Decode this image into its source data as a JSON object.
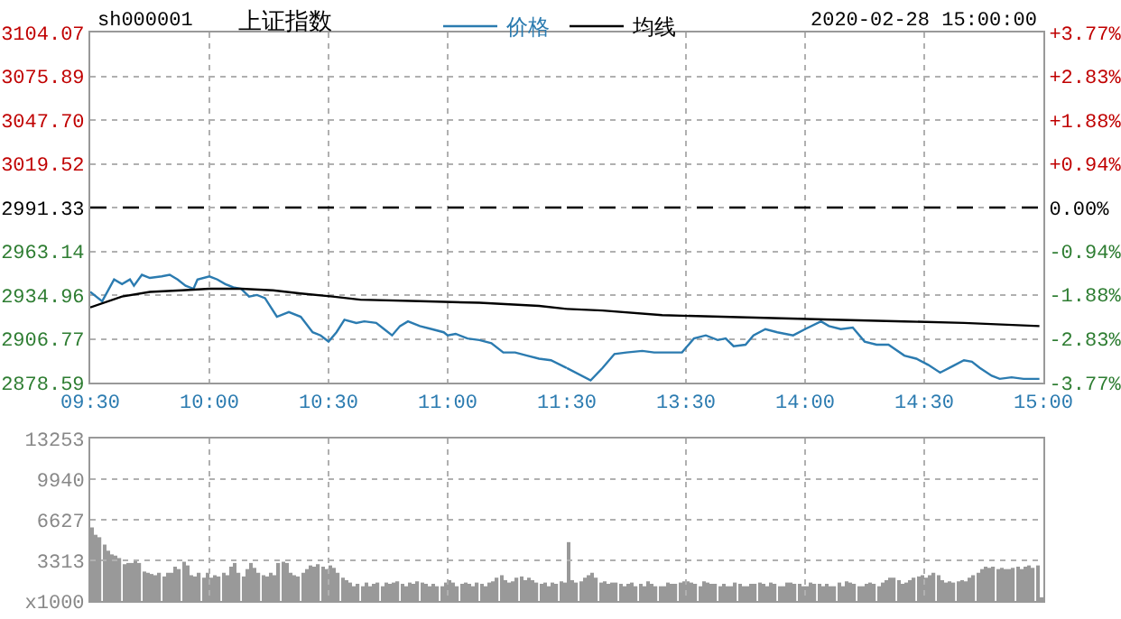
{
  "chart_data": [
    {
      "type": "line",
      "title": "上证指数",
      "annotations": [
        "sh000001",
        "2020-02-28 15:00:00"
      ],
      "legend": "top",
      "grid": true,
      "marker": "none",
      "line_style": "solid",
      "xlim": [
        "2020-02-28T09:30",
        "2020-02-28T11:30"
      ],
      "xticks": [
        {
          "value": "2020-02-28T09:30",
          "label": "09:30"
        },
        {
          "value": "2020-02-28T10:00",
          "label": "10:00"
        },
        {
          "value": "2020-02-28T10:30",
          "label": "10:30"
        },
        {
          "value": "2020-02-28T11:00",
          "label": "11:00"
        },
        {
          "value": "2020-02-28T11:30",
          "label": "11:30"
        }
      ],
      "ylim": [
        2878.59,
        3104.07
      ],
      "yticks": [
        2878.59,
        2906.77,
        2934.96,
        2963.14,
        2991.33,
        3019.52,
        {
          "value": 3047.7,
          "label": "3047.70"
        },
        3075.89,
        3104.07
      ],
      "ref_lines": [
        {
          "axis": "y",
          "value": 2991.33,
          "label": null,
          "color": "#000000",
          "line_style": "dashed"
        }
      ],
      "series": [
        {
          "name": "价格",
          "color": "#2b7bb0",
          "x": [
            "2020-02-28T09:30",
            "2020-02-28T09:33",
            "2020-02-28T09:36",
            "2020-02-28T09:38",
            "2020-02-28T09:40",
            "2020-02-28T09:41",
            "2020-02-28T09:43",
            "2020-02-28T09:45",
            "2020-02-28T09:48",
            "2020-02-28T09:50",
            "2020-02-28T09:52",
            "2020-02-28T09:54",
            "2020-02-28T09:56",
            "2020-02-28T09:57",
            "2020-02-28T10:00",
            "2020-02-28T10:02",
            "2020-02-28T10:04",
            "2020-02-28T10:06",
            "2020-02-28T10:08",
            "2020-02-28T10:10",
            "2020-02-28T10:12",
            "2020-02-28T10:14",
            "2020-02-28T10:17",
            "2020-02-28T10:20",
            "2020-02-28T10:23",
            "2020-02-28T10:26",
            "2020-02-28T10:28",
            "2020-02-28T10:30",
            "2020-02-28T10:32",
            "2020-02-28T10:34",
            "2020-02-28T10:37",
            "2020-02-28T10:39",
            "2020-02-28T10:42",
            "2020-02-28T10:44",
            "2020-02-28T10:46",
            "2020-02-28T10:48",
            "2020-02-28T10:50",
            "2020-02-28T10:53",
            "2020-02-28T10:56",
            "2020-02-28T10:59",
            "2020-02-28T11:00",
            "2020-02-28T11:02",
            "2020-02-28T11:05",
            "2020-02-28T11:08",
            "2020-02-28T11:11",
            "2020-02-28T11:14",
            "2020-02-28T11:17",
            "2020-02-28T11:20",
            "2020-02-28T11:23",
            "2020-02-28T11:26",
            "2020-02-28T11:30"
          ],
          "values": [
            2937,
            2931,
            2945,
            2942,
            2945,
            2941,
            2948,
            2946,
            2947,
            2948,
            2945,
            2941,
            2939,
            2945,
            2947,
            2945,
            2942,
            2940,
            2939,
            2934,
            2935,
            2933,
            2921,
            2924,
            2921,
            2911,
            2909,
            2905,
            2911,
            2919,
            2917,
            2918,
            2917,
            2913,
            2909,
            2915,
            2918,
            2915,
            2913,
            2911,
            2909,
            2910,
            2907,
            2906,
            2904,
            2898,
            2898,
            2896,
            2894,
            2893,
            2888
          ]
        },
        {
          "name": "均线",
          "color": "#000000",
          "x": [
            "2020-02-28T09:30",
            "2020-02-28T09:38",
            "2020-02-28T09:45",
            "2020-02-28T09:53",
            "2020-02-28T10:00",
            "2020-02-28T10:08",
            "2020-02-28T10:16",
            "2020-02-28T10:23",
            "2020-02-28T10:31",
            "2020-02-28T10:38",
            "2020-02-28T10:53",
            "2020-02-28T11:08",
            "2020-02-28T11:23",
            "2020-02-28T11:30"
          ],
          "values": [
            2927,
            2934,
            2937,
            2938,
            2939,
            2939,
            2938,
            2936,
            2934,
            2932,
            2931,
            2930,
            2928,
            2926
          ]
        }
      ]
    },
    {
      "type": "line",
      "grid": true,
      "marker": "none",
      "line_style": "solid",
      "tick_labels": "x",
      "xlim": [
        "2020-02-28T13:00",
        "2020-02-28T15:00"
      ],
      "xticks": [
        {
          "value": "2020-02-28T13:30",
          "label": "13:30"
        },
        {
          "value": "2020-02-28T14:00",
          "label": "14:00"
        },
        {
          "value": "2020-02-28T14:30",
          "label": "14:30"
        },
        {
          "value": "2020-02-28T15:00",
          "label": "15:00"
        }
      ],
      "ylim": [
        2878.59,
        3104.07
      ],
      "yticks": [
        2878.59,
        2906.77,
        2934.96,
        2963.14,
        2991.33,
        3019.52,
        3047.7,
        3075.89,
        3104.07
      ],
      "y2lim": [
        -3.77,
        3.77
      ],
      "y2ticks": [
        {
          "value": -3.77,
          "label": "-3.77%"
        },
        {
          "value": -2.83,
          "label": "-2.83%"
        },
        {
          "value": -1.88,
          "label": "-1.88%"
        },
        {
          "value": -0.94,
          "label": "-0.94%"
        },
        {
          "value": 0,
          "label": "0.00%"
        },
        {
          "value": 0.94,
          "label": "+0.94%"
        },
        {
          "value": 1.88,
          "label": "+1.88%"
        },
        {
          "value": 2.83,
          "label": "+2.83%"
        },
        {
          "value": 3.77,
          "label": "+3.77%"
        }
      ],
      "ref_lines": [
        {
          "axis": "y",
          "value": 2991.33,
          "label": null,
          "color": "#000000",
          "line_style": "dashed"
        }
      ],
      "series": [
        {
          "color": "#2b7bb0",
          "x": [
            "2020-02-28T13:00",
            "2020-02-28T13:06",
            "2020-02-28T13:09",
            "2020-02-28T13:12",
            "2020-02-28T13:15",
            "2020-02-28T13:19",
            "2020-02-28T13:22",
            "2020-02-28T13:25",
            "2020-02-28T13:29",
            "2020-02-28T13:32",
            "2020-02-28T13:35",
            "2020-02-28T13:38",
            "2020-02-28T13:40",
            "2020-02-28T13:42",
            "2020-02-28T13:45",
            "2020-02-28T13:47",
            "2020-02-28T13:50",
            "2020-02-28T13:53",
            "2020-02-28T13:57",
            "2020-02-28T14:00",
            "2020-02-28T14:04",
            "2020-02-28T14:06",
            "2020-02-28T14:09",
            "2020-02-28T14:12",
            "2020-02-28T14:15",
            "2020-02-28T14:18",
            "2020-02-28T14:21",
            "2020-02-28T14:25",
            "2020-02-28T14:28",
            "2020-02-28T14:31",
            "2020-02-28T14:34",
            "2020-02-28T14:37",
            "2020-02-28T14:40",
            "2020-02-28T14:42",
            "2020-02-28T14:44",
            "2020-02-28T14:47",
            "2020-02-28T14:49",
            "2020-02-28T14:52",
            "2020-02-28T14:55",
            "2020-02-28T14:59"
          ],
          "values": [
            2888,
            2880,
            2888,
            2897,
            2898,
            2899,
            2898,
            2898,
            2898,
            2907,
            2909,
            2906,
            2907,
            2902,
            2903,
            2909,
            2913,
            2911,
            2909,
            2913,
            2918,
            2915,
            2913,
            2914,
            2905,
            2903,
            2903,
            2896,
            2894,
            2890,
            2885,
            2889,
            2893,
            2892,
            2888,
            2883,
            2881,
            2882,
            2881,
            2881
          ]
        },
        {
          "color": "#000000",
          "x": [
            "2020-02-28T13:00",
            "2020-02-28T13:09",
            "2020-02-28T13:24",
            "2020-02-28T13:39",
            "2020-02-28T13:54",
            "2020-02-28T14:09",
            "2020-02-28T14:25",
            "2020-02-28T14:40",
            "2020-02-28T14:59"
          ],
          "values": [
            2926,
            2925,
            2922,
            2921,
            2920,
            2919,
            2918,
            2917,
            2915
          ]
        }
      ]
    },
    {
      "type": "bar",
      "grid": true,
      "tick_labels": "y",
      "categories": [
        null,
        null,
        null,
        null,
        null,
        null,
        null,
        null,
        null,
        null,
        null,
        null,
        null,
        null,
        null,
        null,
        null,
        null,
        null,
        null,
        null,
        null,
        null,
        null,
        null,
        null,
        null,
        null,
        null,
        null,
        null,
        null,
        null,
        null,
        null,
        null,
        null,
        null,
        null,
        null,
        null,
        null,
        null,
        null,
        null,
        null,
        null,
        null,
        null,
        null,
        null,
        null,
        null,
        null,
        null,
        null,
        null,
        null,
        null,
        null,
        null,
        null,
        null,
        null,
        null,
        null,
        null,
        null,
        null,
        null,
        null,
        null,
        null,
        null,
        null,
        null,
        null,
        null,
        null,
        null,
        null,
        null,
        null,
        null,
        null,
        null,
        null,
        null,
        null,
        null,
        null,
        null,
        null,
        null,
        null,
        null,
        null,
        null,
        null,
        null,
        null,
        null,
        null,
        null,
        null,
        null,
        null,
        null,
        null,
        null,
        null,
        null,
        null,
        null,
        null,
        null,
        null,
        null,
        null,
        null,
        null,
        null,
        null,
        null,
        null,
        null,
        null,
        null,
        null,
        null,
        null,
        null,
        null,
        null,
        null,
        null,
        null,
        null,
        null,
        null,
        null,
        null,
        null,
        null,
        null,
        null,
        null,
        null,
        null,
        null,
        null,
        null,
        null,
        null,
        null,
        null,
        null,
        null,
        null,
        null,
        null,
        null,
        null,
        null,
        null,
        null,
        null,
        null,
        null,
        null,
        null,
        null,
        null,
        null,
        null,
        null,
        null,
        null,
        null,
        null,
        null,
        null,
        null,
        null,
        null,
        null,
        null,
        null,
        null,
        null,
        null,
        null,
        null,
        null,
        null,
        null,
        null,
        null,
        null,
        null,
        null,
        null,
        null,
        null,
        null,
        null,
        null,
        null,
        null,
        null,
        null,
        null,
        null,
        null,
        null,
        null,
        null,
        null,
        null,
        null,
        null,
        null,
        null,
        null,
        null,
        null,
        null,
        null,
        null,
        null,
        null,
        null,
        null,
        null,
        null,
        null,
        null,
        null,
        null,
        null
      ],
      "ylim": [
        0,
        13253
      ],
      "yticks": [
        {
          "value": 0,
          "label": "x1000"
        },
        3313,
        6627,
        9940,
        13253
      ],
      "series": [
        {
          "color": "#999999",
          "values": [
            6000,
            5400,
            5200,
            4600,
            4100,
            3800,
            3700,
            3500,
            3000,
            3100,
            3100,
            3300,
            3100,
            2400,
            2300,
            2200,
            2100,
            2300,
            2000,
            2300,
            2300,
            2800,
            2600,
            3200,
            2900,
            2100,
            2000,
            2300,
            1900,
            2300,
            1900,
            2100,
            2000,
            2300,
            2100,
            2800,
            3100,
            2300,
            2000,
            2600,
            3100,
            2700,
            2300,
            2100,
            2000,
            2300,
            2100,
            3100,
            3200,
            3100,
            2300,
            2100,
            2000,
            2300,
            2600,
            2900,
            2800,
            3000,
            2800,
            2600,
            2900,
            2700,
            2300,
            1900,
            1700,
            1500,
            1200,
            1400,
            1200,
            1500,
            1200,
            1400,
            1500,
            1200,
            1500,
            1400,
            1500,
            1600,
            1400,
            1200,
            1500,
            1400,
            1600,
            1500,
            1400,
            1200,
            1400,
            1200,
            1200,
            1500,
            1700,
            1500,
            1200,
            1400,
            1500,
            1400,
            1200,
            1500,
            1400,
            1200,
            1500,
            1600,
            1900,
            2100,
            1700,
            1500,
            1600,
            1900,
            2000,
            1700,
            1900,
            1700,
            1500,
            1400,
            1500,
            1200,
            1500,
            1400,
            1600,
            1500,
            4800,
            1700,
            1500,
            1600,
            1900,
            2100,
            2300,
            1900,
            1500,
            1600,
            1400,
            1500,
            1500,
            1400,
            1200,
            1400,
            1500,
            1200,
            1400,
            1200,
            1600,
            1400,
            1200,
            1200,
            1200,
            1500,
            1400,
            1400,
            1500,
            1600,
            1600,
            1500,
            1400,
            1200,
            1600,
            1500,
            1400,
            1400,
            1200,
            1400,
            1200,
            1200,
            1500,
            1400,
            1200,
            1200,
            1400,
            1400,
            1500,
            1400,
            1200,
            1500,
            1400,
            1200,
            1200,
            1500,
            1500,
            1400,
            1400,
            1200,
            1200,
            1500,
            1400,
            1400,
            1200,
            1400,
            1200,
            1200,
            1500,
            1200,
            1600,
            1500,
            1400,
            1200,
            1200,
            1400,
            1500,
            1400,
            1200,
            1500,
            1700,
            1900,
            1900,
            1700,
            1400,
            1500,
            1700,
            1900,
            2000,
            2100,
            1900,
            2100,
            2300,
            2100,
            1700,
            1500,
            1600,
            1500,
            1600,
            1700,
            1600,
            1900,
            2100,
            2300,
            2600,
            2800,
            2700,
            2800,
            2600,
            2700,
            2600,
            2600,
            2700,
            2800,
            2600,
            2800,
            2900,
            2700,
            2900,
            200
          ]
        }
      ]
    }
  ]
}
